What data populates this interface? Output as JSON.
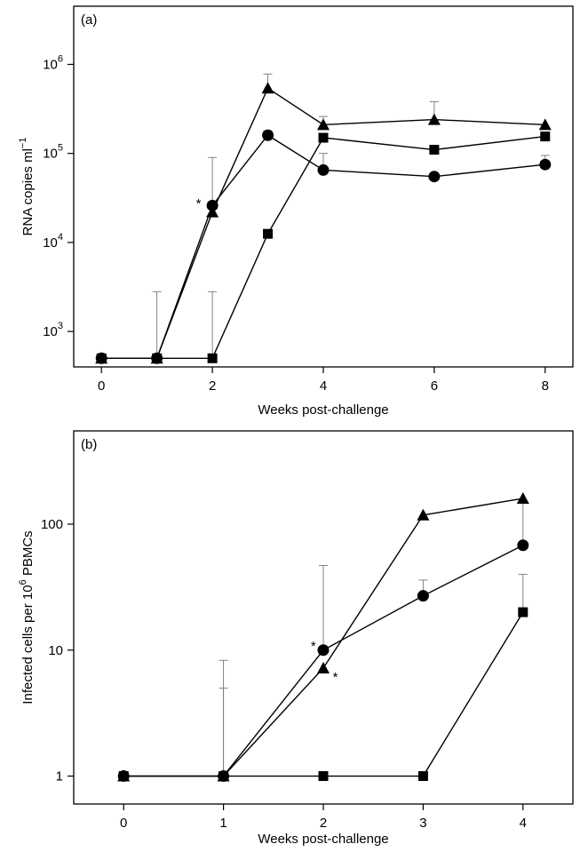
{
  "chart_data": [
    {
      "type": "line",
      "panel_label": "(a)",
      "xlabel": "Weeks post-challenge",
      "ylabel_main": "RNA copies ml",
      "ylabel_sup": "−1",
      "scale_y": "log",
      "xlim": [
        -0.5,
        8.5
      ],
      "ylim": [
        400,
        4500000
      ],
      "x_ticks": [
        0,
        2,
        4,
        6,
        8
      ],
      "x_tick_labels": [
        "0",
        "2",
        "4",
        "6",
        "8"
      ],
      "y_ticks": [
        1000,
        10000,
        100000,
        1000000
      ],
      "y_tick_labels": [
        {
          "base": "10",
          "exp": "3"
        },
        {
          "base": "10",
          "exp": "4"
        },
        {
          "base": "10",
          "exp": "5"
        },
        {
          "base": "10",
          "exp": "6"
        }
      ],
      "series": [
        {
          "marker": "triangle",
          "x": [
            0,
            1,
            2,
            3,
            4,
            6,
            8
          ],
          "y": [
            500,
            500,
            22000,
            540000,
            210000,
            240000,
            210000
          ],
          "error_upper": [
            null,
            null,
            null,
            780000,
            260000,
            380000,
            null
          ]
        },
        {
          "marker": "circle",
          "x": [
            0,
            1,
            2,
            3,
            4,
            6,
            8
          ],
          "y": [
            500,
            500,
            26000,
            160000,
            65000,
            55000,
            75000
          ],
          "error_upper": [
            null,
            2800,
            90000,
            180000,
            100000,
            null,
            95000
          ]
        },
        {
          "marker": "square",
          "x": [
            0,
            1,
            2,
            3,
            4,
            6,
            8
          ],
          "y": [
            500,
            500,
            500,
            12500,
            150000,
            110000,
            155000
          ],
          "error_upper": [
            null,
            null,
            2800,
            null,
            null,
            null,
            null
          ]
        }
      ],
      "annotations": [
        {
          "text": "*",
          "x": 1.75,
          "y": 28000
        }
      ]
    },
    {
      "type": "line",
      "panel_label": "(b)",
      "xlabel": "Weeks post-challenge",
      "ylabel_main": "Infected cells per 10",
      "ylabel_sup": "6",
      "ylabel_tail": " PBMCs",
      "scale_y": "log",
      "xlim": [
        -0.5,
        4.5
      ],
      "ylim": [
        0.6,
        550
      ],
      "x_ticks": [
        0,
        1,
        2,
        3,
        4
      ],
      "x_tick_labels": [
        "0",
        "1",
        "2",
        "3",
        "4"
      ],
      "y_ticks": [
        1,
        10,
        100
      ],
      "y_tick_labels": [
        "1",
        "10",
        "100"
      ],
      "series": [
        {
          "marker": "triangle",
          "x": [
            0,
            1,
            2,
            3,
            4
          ],
          "y": [
            1,
            1,
            7.2,
            118,
            160
          ],
          "error_upper": [
            null,
            5,
            null,
            null,
            null
          ]
        },
        {
          "marker": "circle",
          "x": [
            0,
            1,
            2,
            3,
            4
          ],
          "y": [
            1,
            1,
            10,
            27,
            68
          ],
          "error_upper": [
            null,
            8.3,
            47,
            36,
            150
          ]
        },
        {
          "marker": "square",
          "x": [
            0,
            1,
            2,
            3,
            4
          ],
          "y": [
            1,
            1,
            1,
            1,
            20
          ],
          "error_upper": [
            null,
            null,
            null,
            null,
            40
          ]
        }
      ],
      "annotations": [
        {
          "text": "*",
          "x": 1.9,
          "y": 11
        },
        {
          "text": "*",
          "x": 2.12,
          "y": 6.2
        }
      ]
    }
  ]
}
